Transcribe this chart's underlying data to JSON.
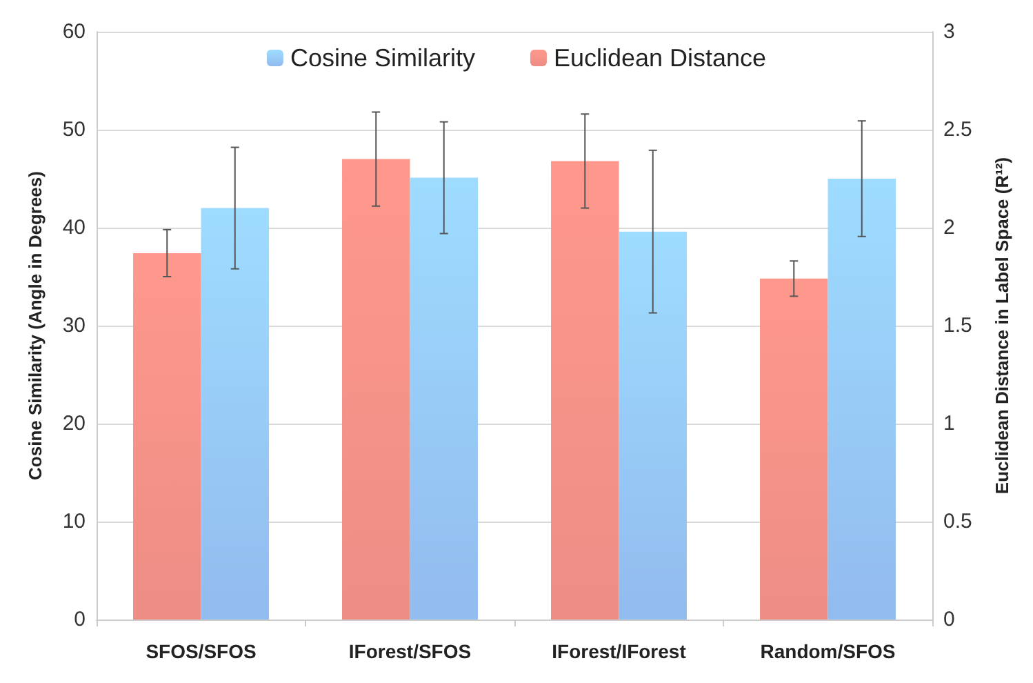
{
  "chart_data": {
    "type": "bar",
    "categories": [
      "SFOS/SFOS",
      "IForest/SFOS",
      "IForest/IForest",
      "Random/SFOS"
    ],
    "ylabel": "Cosine Similarity (Angle in Degrees)",
    "y2label": "Euclidean Distance in Label Space (R¹²)",
    "series": [
      {
        "name": "Euclidean Distance",
        "color": "#ea7a70",
        "axis": "y2",
        "values": [
          1.87,
          2.35,
          2.34,
          1.74
        ],
        "errors": [
          0.12,
          0.24,
          0.24,
          0.09
        ]
      },
      {
        "name": "Cosine Similarity",
        "color": "#7fb0ec",
        "values": [
          42,
          45.1,
          39.6,
          45
        ],
        "errors": [
          6.2,
          5.7,
          8.3,
          5.9
        ]
      }
    ],
    "ylim": [
      0,
      60
    ],
    "yticks": [
      0,
      10,
      20,
      30,
      40,
      50,
      60
    ],
    "y2lim": [
      0,
      3
    ],
    "y2ticks": [
      0,
      0.5,
      1,
      1.5,
      2,
      2.5,
      3
    ],
    "grid": "y",
    "legend": "top"
  }
}
